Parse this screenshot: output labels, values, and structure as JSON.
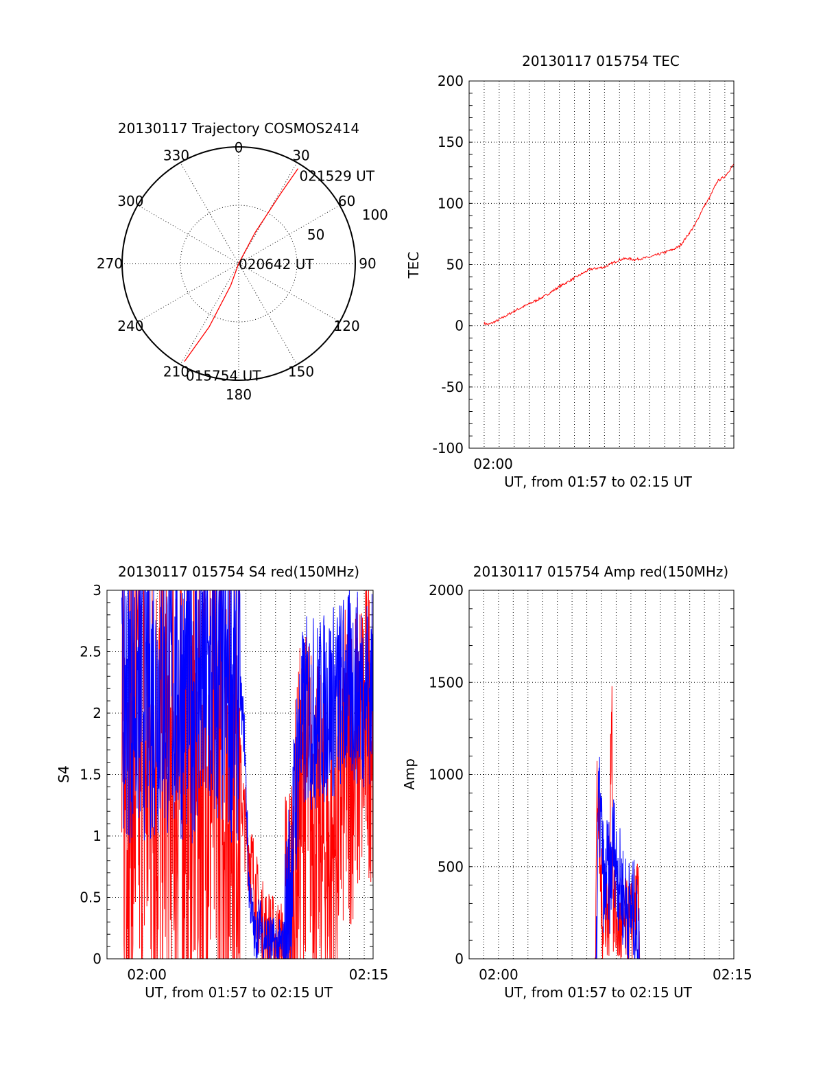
{
  "colors": {
    "red": "#ff0000",
    "blue": "#0000ff",
    "axes": "#000000"
  },
  "chart_data": [
    {
      "id": "trajectory",
      "type": "polar",
      "title": "20130117 Trajectory COSMOS2414",
      "angle_labels": [
        "0",
        "30",
        "60",
        "90",
        "120",
        "150",
        "180",
        "210",
        "240",
        "270",
        "300",
        "330"
      ],
      "radius_labels": [
        "50",
        "100"
      ],
      "rlim": [
        0,
        100
      ],
      "grid": true,
      "track": {
        "color": "red",
        "points": [
          {
            "azimuth": 209,
            "radius": 96
          },
          {
            "azimuth": 205,
            "radius": 60
          },
          {
            "azimuth": 200,
            "radius": 20
          },
          {
            "azimuth": 0,
            "radius": 0
          },
          {
            "azimuth": 28,
            "radius": 30
          },
          {
            "azimuth": 31,
            "radius": 70
          },
          {
            "azimuth": 32,
            "radius": 96
          }
        ]
      },
      "annotations": [
        {
          "text": "021529 UT",
          "azimuth": 32,
          "radius": 96
        },
        {
          "text": "020642 UT",
          "azimuth": 0,
          "radius": 0
        },
        {
          "text": "015754 UT",
          "azimuth": 209,
          "radius": 96
        }
      ]
    },
    {
      "id": "tec",
      "type": "line",
      "title": "20130117 015754 TEC",
      "ylabel": "TEC",
      "xlabel": "UT, from 01:57 to 02:15 UT",
      "x_tick_labels": [
        {
          "t": 1.6,
          "label": "02:00"
        }
      ],
      "xlim": [
        0,
        17.6
      ],
      "ylim": [
        -100,
        200
      ],
      "y_ticks": [
        -100,
        -50,
        0,
        50,
        100,
        150,
        200
      ],
      "grid": true,
      "series": [
        {
          "color": "red",
          "x": [
            1.0,
            1.3,
            2.0,
            3.0,
            4.0,
            5.0,
            6.0,
            7.0,
            8.0,
            9.0,
            10.0,
            10.5,
            11.0,
            12.0,
            13.0,
            13.5,
            14.0,
            15.0,
            15.5,
            16.0,
            16.5,
            17.0,
            17.6
          ],
          "y": [
            2,
            1,
            5,
            12,
            18,
            24,
            32,
            39,
            46,
            48,
            54,
            55,
            54,
            56,
            60,
            62,
            65,
            82,
            95,
            105,
            118,
            122,
            132
          ]
        }
      ]
    },
    {
      "id": "s4",
      "type": "line",
      "title": "20130117 015754 S4 red(150MHz)",
      "ylabel": "S4",
      "xlabel": "UT, from 01:57 to 02:15 UT",
      "x_tick_labels": [
        {
          "t": 2.7,
          "label": "02:00"
        },
        {
          "t": 17.7,
          "label": "02:15"
        }
      ],
      "xlim": [
        0,
        18
      ],
      "ylim": [
        0,
        3
      ],
      "y_ticks": [
        0,
        0.5,
        1,
        1.5,
        2,
        2.5,
        3
      ],
      "grid": true,
      "series": [
        {
          "color": "red",
          "x": [
            1.0,
            9.0,
            9.3,
            9.6,
            10.0,
            10.3,
            10.6,
            11.0,
            11.3,
            11.6,
            12.0,
            12.5,
            13.0,
            13.5,
            14.0,
            14.5,
            15.0,
            15.5,
            16.0,
            16.5,
            17.0,
            17.5,
            18.0
          ],
          "y": [
            1.5,
            1.5,
            1.1,
            0.9,
            0.6,
            0.35,
            0.25,
            0.2,
            0.15,
            0.12,
            0.1,
            0.4,
            1.2,
            1.4,
            1.2,
            1.0,
            0.8,
            1.0,
            1.5,
            1.6,
            1.7,
            1.9,
            2.0
          ],
          "noise": 1.0
        },
        {
          "color": "blue",
          "x": [
            1.0,
            9.0,
            9.3,
            9.6,
            10.0,
            10.3,
            10.6,
            11.0,
            11.3,
            11.6,
            12.0,
            12.5,
            13.0,
            13.5,
            14.0,
            14.5,
            15.0,
            15.5,
            16.0,
            16.5,
            17.0,
            17.5,
            18.0
          ],
          "y": [
            2.2,
            2.2,
            1.8,
            0.6,
            0.15,
            0.3,
            0.2,
            0.15,
            0.12,
            0.1,
            0.12,
            0.8,
            1.8,
            2.0,
            2.0,
            2.0,
            2.1,
            2.1,
            2.2,
            2.2,
            2.2,
            2.2,
            2.2
          ],
          "noise": 0.6
        }
      ]
    },
    {
      "id": "amp",
      "type": "line",
      "title": "20130117 015754 Amp red(150MHz)",
      "ylabel": "Amp",
      "xlabel": "UT, from 01:57 to 02:15 UT",
      "x_tick_labels": [
        {
          "t": 2.0,
          "label": "02:00"
        },
        {
          "t": 17.9,
          "label": "02:15"
        }
      ],
      "xlim": [
        0,
        18
      ],
      "ylim": [
        0,
        2000
      ],
      "y_ticks": [
        0,
        500,
        1000,
        1500,
        2000
      ],
      "grid": true,
      "series": [
        {
          "color": "red",
          "x": [
            1.0,
            8.5,
            8.6,
            8.7,
            8.9,
            9.1,
            9.3,
            9.5,
            9.7,
            9.8,
            10.0,
            10.3,
            10.6,
            10.9,
            11.2,
            11.5,
            11.6,
            17.9
          ],
          "y": [
            0,
            0,
            100,
            930,
            500,
            200,
            300,
            200,
            1500,
            250,
            200,
            150,
            200,
            150,
            250,
            300,
            0,
            0
          ],
          "noise": 0.25
        },
        {
          "color": "blue",
          "x": [
            1.0,
            8.6,
            8.7,
            8.8,
            9.0,
            9.2,
            9.4,
            9.6,
            9.8,
            10.0,
            10.3,
            10.6,
            10.9,
            11.2,
            11.4,
            11.6,
            17.9
          ],
          "y": [
            0,
            0,
            200,
            850,
            700,
            300,
            500,
            400,
            650,
            500,
            400,
            300,
            250,
            250,
            150,
            0,
            0
          ],
          "noise": 0.3
        }
      ]
    }
  ]
}
